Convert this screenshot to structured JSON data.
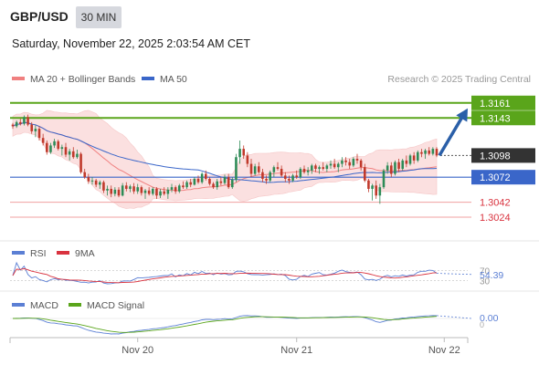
{
  "header": {
    "pair": "GBP/USD",
    "timeframe": "30 MIN",
    "datetime": "Saturday, November 22, 2025 2:03:54 AM CET"
  },
  "legend": {
    "ma20": "MA 20 + Bollinger Bands",
    "ma50": "MA 50",
    "copyright": "Research © 2025 Trading Central",
    "rsi": "RSI",
    "rsi_ma": "9MA",
    "macd": "MACD",
    "macd_signal": "MACD Signal"
  },
  "colors": {
    "green_level": "#5aa51b",
    "blue_level": "#3a66c9",
    "red_level": "#d9333f",
    "current_price_box": "#333333",
    "bollinger_fill": "#fbe0e0",
    "ma20_line": "#f08080",
    "ma50_line": "#3a66c9",
    "candle_up": "#2e8b57",
    "candle_down": "#c0392b",
    "forecast_arrow": "#2a5fa8"
  },
  "chart_data": {
    "type": "candlestick",
    "price_axis": {
      "min": 1.3,
      "max": 1.3175
    },
    "levels": [
      {
        "label": "1.3161",
        "value": 1.3161,
        "kind": "resistance",
        "style": "green"
      },
      {
        "label": "1.3143",
        "value": 1.3143,
        "kind": "resistance",
        "style": "green"
      },
      {
        "label": "1.3098",
        "value": 1.3098,
        "kind": "current",
        "style": "dark"
      },
      {
        "label": "1.3072",
        "value": 1.3072,
        "kind": "pivot",
        "style": "blue"
      },
      {
        "label": "1.3042",
        "value": 1.3042,
        "kind": "support",
        "style": "red"
      },
      {
        "label": "1.3024",
        "value": 1.3024,
        "kind": "support",
        "style": "red"
      }
    ],
    "x_tick_labels": [
      "Nov 20",
      "Nov 21",
      "Nov 22"
    ],
    "x_tick_bar_index": [
      33,
      75,
      114
    ],
    "candles": [
      [
        1.3135,
        1.3137,
        1.313,
        1.3133
      ],
      [
        1.3133,
        1.314,
        1.3131,
        1.3138
      ],
      [
        1.3138,
        1.3142,
        1.3134,
        1.3136
      ],
      [
        1.3136,
        1.3146,
        1.3134,
        1.3144
      ],
      [
        1.3144,
        1.3147,
        1.3133,
        1.3135
      ],
      [
        1.3135,
        1.3138,
        1.3124,
        1.3127
      ],
      [
        1.3127,
        1.3134,
        1.312,
        1.313
      ],
      [
        1.313,
        1.3133,
        1.3116,
        1.3119
      ],
      [
        1.3119,
        1.3124,
        1.311,
        1.3113
      ],
      [
        1.3113,
        1.3116,
        1.3099,
        1.3102
      ],
      [
        1.3102,
        1.3113,
        1.31,
        1.311
      ],
      [
        1.311,
        1.3118,
        1.3107,
        1.3115
      ],
      [
        1.3115,
        1.3117,
        1.3104,
        1.3106
      ],
      [
        1.3106,
        1.3111,
        1.3098,
        1.3108
      ],
      [
        1.3108,
        1.3113,
        1.3096,
        1.3099
      ],
      [
        1.3099,
        1.3106,
        1.3092,
        1.3103
      ],
      [
        1.3103,
        1.3108,
        1.3094,
        1.3096
      ],
      [
        1.3096,
        1.3105,
        1.3094,
        1.31
      ],
      [
        1.31,
        1.3102,
        1.3076,
        1.3078
      ],
      [
        1.3078,
        1.3082,
        1.307,
        1.3072
      ],
      [
        1.3072,
        1.3076,
        1.3064,
        1.3067
      ],
      [
        1.3067,
        1.3072,
        1.3063,
        1.3068
      ],
      [
        1.3068,
        1.307,
        1.306,
        1.3063
      ],
      [
        1.3063,
        1.3068,
        1.3058,
        1.3066
      ],
      [
        1.3066,
        1.3068,
        1.3053,
        1.3056
      ],
      [
        1.3056,
        1.3062,
        1.305,
        1.3058
      ],
      [
        1.3058,
        1.3062,
        1.3048,
        1.3052
      ],
      [
        1.3052,
        1.306,
        1.3049,
        1.3057
      ],
      [
        1.3057,
        1.306,
        1.3048,
        1.305
      ],
      [
        1.305,
        1.3065,
        1.3049,
        1.3062
      ],
      [
        1.3062,
        1.3066,
        1.3055,
        1.3058
      ],
      [
        1.3058,
        1.3063,
        1.3054,
        1.3061
      ],
      [
        1.3061,
        1.3065,
        1.3052,
        1.3055
      ],
      [
        1.3055,
        1.3064,
        1.3052,
        1.306
      ],
      [
        1.306,
        1.3062,
        1.305,
        1.3053
      ],
      [
        1.3053,
        1.3058,
        1.3046,
        1.3056
      ],
      [
        1.3056,
        1.306,
        1.305,
        1.3052
      ],
      [
        1.3052,
        1.306,
        1.305,
        1.3058
      ],
      [
        1.3058,
        1.306,
        1.3046,
        1.305
      ],
      [
        1.305,
        1.3058,
        1.3047,
        1.3055
      ],
      [
        1.3055,
        1.306,
        1.305,
        1.3052
      ],
      [
        1.3052,
        1.306,
        1.3046,
        1.3057
      ],
      [
        1.3057,
        1.3064,
        1.3054,
        1.306
      ],
      [
        1.306,
        1.3062,
        1.3052,
        1.3055
      ],
      [
        1.3055,
        1.3064,
        1.3053,
        1.3062
      ],
      [
        1.3062,
        1.3067,
        1.3058,
        1.306
      ],
      [
        1.306,
        1.3068,
        1.3058,
        1.3066
      ],
      [
        1.3066,
        1.307,
        1.306,
        1.3063
      ],
      [
        1.3063,
        1.3072,
        1.3062,
        1.307
      ],
      [
        1.307,
        1.3074,
        1.3064,
        1.3066
      ],
      [
        1.3066,
        1.3078,
        1.3064,
        1.3076
      ],
      [
        1.3076,
        1.308,
        1.3068,
        1.307
      ],
      [
        1.307,
        1.3072,
        1.3062,
        1.3064
      ],
      [
        1.3064,
        1.3066,
        1.3058,
        1.306
      ],
      [
        1.306,
        1.307,
        1.3057,
        1.3067
      ],
      [
        1.3067,
        1.3072,
        1.3062,
        1.3065
      ],
      [
        1.3065,
        1.3075,
        1.3063,
        1.3072
      ],
      [
        1.3072,
        1.3076,
        1.3058,
        1.306
      ],
      [
        1.306,
        1.3072,
        1.3058,
        1.3069
      ],
      [
        1.3069,
        1.31,
        1.3066,
        1.3096
      ],
      [
        1.3096,
        1.3116,
        1.3088,
        1.3106
      ],
      [
        1.3106,
        1.311,
        1.3094,
        1.3098
      ],
      [
        1.3098,
        1.3102,
        1.3084,
        1.3088
      ],
      [
        1.3088,
        1.3094,
        1.3072,
        1.3076
      ],
      [
        1.3076,
        1.3088,
        1.3074,
        1.3085
      ],
      [
        1.3085,
        1.309,
        1.3076,
        1.3078
      ],
      [
        1.3078,
        1.3082,
        1.3066,
        1.307
      ],
      [
        1.307,
        1.3074,
        1.3064,
        1.3068
      ],
      [
        1.3068,
        1.308,
        1.3066,
        1.3078
      ],
      [
        1.3078,
        1.3086,
        1.3072,
        1.3084
      ],
      [
        1.3084,
        1.309,
        1.308,
        1.3082
      ],
      [
        1.3082,
        1.3086,
        1.3072,
        1.3074
      ],
      [
        1.3074,
        1.3078,
        1.3066,
        1.307
      ],
      [
        1.307,
        1.3074,
        1.3064,
        1.3068
      ],
      [
        1.3068,
        1.3076,
        1.3066,
        1.3074
      ],
      [
        1.3074,
        1.308,
        1.307,
        1.3072
      ],
      [
        1.3072,
        1.3084,
        1.307,
        1.3082
      ],
      [
        1.3082,
        1.3086,
        1.3076,
        1.3078
      ],
      [
        1.3078,
        1.3084,
        1.3074,
        1.308
      ],
      [
        1.308,
        1.3088,
        1.3076,
        1.3086
      ],
      [
        1.3086,
        1.3088,
        1.3078,
        1.3082
      ],
      [
        1.3082,
        1.3086,
        1.3076,
        1.3084
      ],
      [
        1.3084,
        1.309,
        1.308,
        1.3082
      ],
      [
        1.3082,
        1.3088,
        1.3078,
        1.3086
      ],
      [
        1.3086,
        1.3092,
        1.3082,
        1.3088
      ],
      [
        1.3088,
        1.3094,
        1.3082,
        1.3084
      ],
      [
        1.3084,
        1.309,
        1.3078,
        1.3088
      ],
      [
        1.3088,
        1.3096,
        1.3084,
        1.3092
      ],
      [
        1.3092,
        1.3096,
        1.3086,
        1.309
      ],
      [
        1.309,
        1.3094,
        1.3082,
        1.3086
      ],
      [
        1.3086,
        1.3096,
        1.3084,
        1.3094
      ],
      [
        1.3094,
        1.31,
        1.3088,
        1.3092
      ],
      [
        1.3092,
        1.3094,
        1.308,
        1.3084
      ],
      [
        1.3084,
        1.3088,
        1.3066,
        1.3068
      ],
      [
        1.3068,
        1.307,
        1.3054,
        1.3058
      ],
      [
        1.3058,
        1.3064,
        1.3044,
        1.3062
      ],
      [
        1.3062,
        1.3068,
        1.3046,
        1.305
      ],
      [
        1.305,
        1.3064,
        1.304,
        1.306
      ],
      [
        1.306,
        1.3082,
        1.3058,
        1.308
      ],
      [
        1.308,
        1.309,
        1.3076,
        1.3086
      ],
      [
        1.3086,
        1.309,
        1.3072,
        1.3076
      ],
      [
        1.3076,
        1.3092,
        1.3074,
        1.309
      ],
      [
        1.309,
        1.3094,
        1.3078,
        1.3082
      ],
      [
        1.3082,
        1.3094,
        1.308,
        1.3092
      ],
      [
        1.3092,
        1.3098,
        1.3084,
        1.3088
      ],
      [
        1.3088,
        1.31,
        1.3086,
        1.3098
      ],
      [
        1.3098,
        1.3102,
        1.3088,
        1.3092
      ],
      [
        1.3092,
        1.3104,
        1.309,
        1.3102
      ],
      [
        1.3102,
        1.3106,
        1.3096,
        1.31
      ],
      [
        1.31,
        1.3106,
        1.3094,
        1.3104
      ],
      [
        1.3104,
        1.3108,
        1.3098,
        1.31
      ],
      [
        1.31,
        1.3108,
        1.3098,
        1.3106
      ],
      [
        1.3106,
        1.3108,
        1.3096,
        1.3098
      ]
    ],
    "rsi": {
      "current_label": "54.39",
      "levels": [
        "70",
        "30"
      ],
      "range": [
        0,
        100
      ]
    },
    "macd": {
      "current_label": "0.00",
      "zero_label": "0"
    }
  }
}
